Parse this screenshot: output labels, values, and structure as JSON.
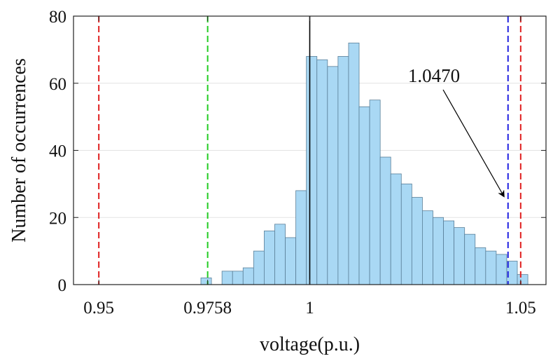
{
  "chart_data": {
    "type": "bar",
    "subtype": "histogram",
    "xlabel": "voltage(p.u.)",
    "ylabel": "Number of occurrences",
    "xlim": [
      0.944,
      1.056
    ],
    "ylim": [
      0,
      80
    ],
    "x_ticks": [
      0.95,
      0.9758,
      1,
      1.05
    ],
    "x_tick_labels": [
      "0.95",
      "0.9758",
      "1",
      "1.05"
    ],
    "y_ticks": [
      0,
      20,
      40,
      60,
      80
    ],
    "y_tick_labels": [
      "0",
      "20",
      "40",
      "60",
      "80"
    ],
    "grid": "horizontal",
    "bin_width": 0.0025,
    "bin_start": 0.9742,
    "values": [
      2,
      0,
      4,
      4,
      5,
      10,
      16,
      18,
      14,
      28,
      68,
      67,
      65,
      68,
      72,
      53,
      55,
      38,
      33,
      30,
      26,
      22,
      20,
      19,
      17,
      15,
      11,
      10,
      9,
      7,
      3
    ],
    "bar_color": "#a9d8f4",
    "bar_edge_color": "#5a7f98",
    "reference_lines": [
      {
        "x": 0.95,
        "color": "#e02020",
        "style": "dashed"
      },
      {
        "x": 0.9758,
        "color": "#22cc22",
        "style": "dashed"
      },
      {
        "x": 1.0,
        "color": "#000000",
        "style": "solid"
      },
      {
        "x": 1.047,
        "color": "#2020e0",
        "style": "dashed"
      },
      {
        "x": 1.05,
        "color": "#e02020",
        "style": "dashed"
      }
    ],
    "annotations": [
      {
        "text": "1.0470",
        "points_to_x": 1.047
      }
    ]
  }
}
